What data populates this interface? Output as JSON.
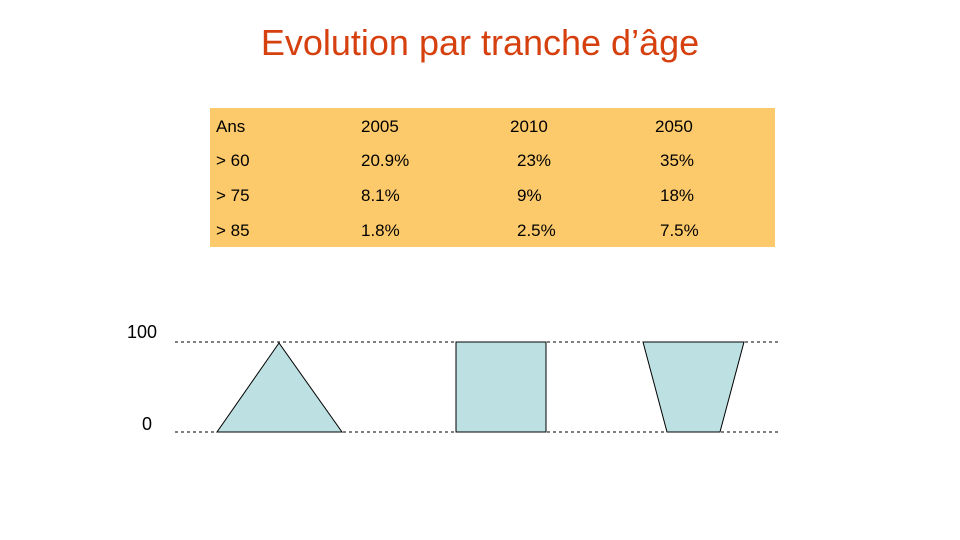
{
  "slide": {
    "title": "Evolution par tranche d’âge"
  },
  "table": {
    "header": [
      "Ans",
      "2005",
      "2010",
      "2050"
    ],
    "rows": [
      [
        "> 60",
        "20.9%",
        "23%",
        "35%"
      ],
      [
        "> 75",
        "8.1%",
        "9%",
        "18%"
      ],
      [
        "> 85",
        "1.8%",
        "2.5%",
        "7.5%"
      ]
    ],
    "background": "#fdca6b"
  },
  "diagram": {
    "axis_top_label": "100",
    "axis_bottom_label": "0",
    "shapes": [
      "triangle",
      "rectangle",
      "inverted-trapezoid"
    ],
    "fill": "#bde0e3"
  }
}
